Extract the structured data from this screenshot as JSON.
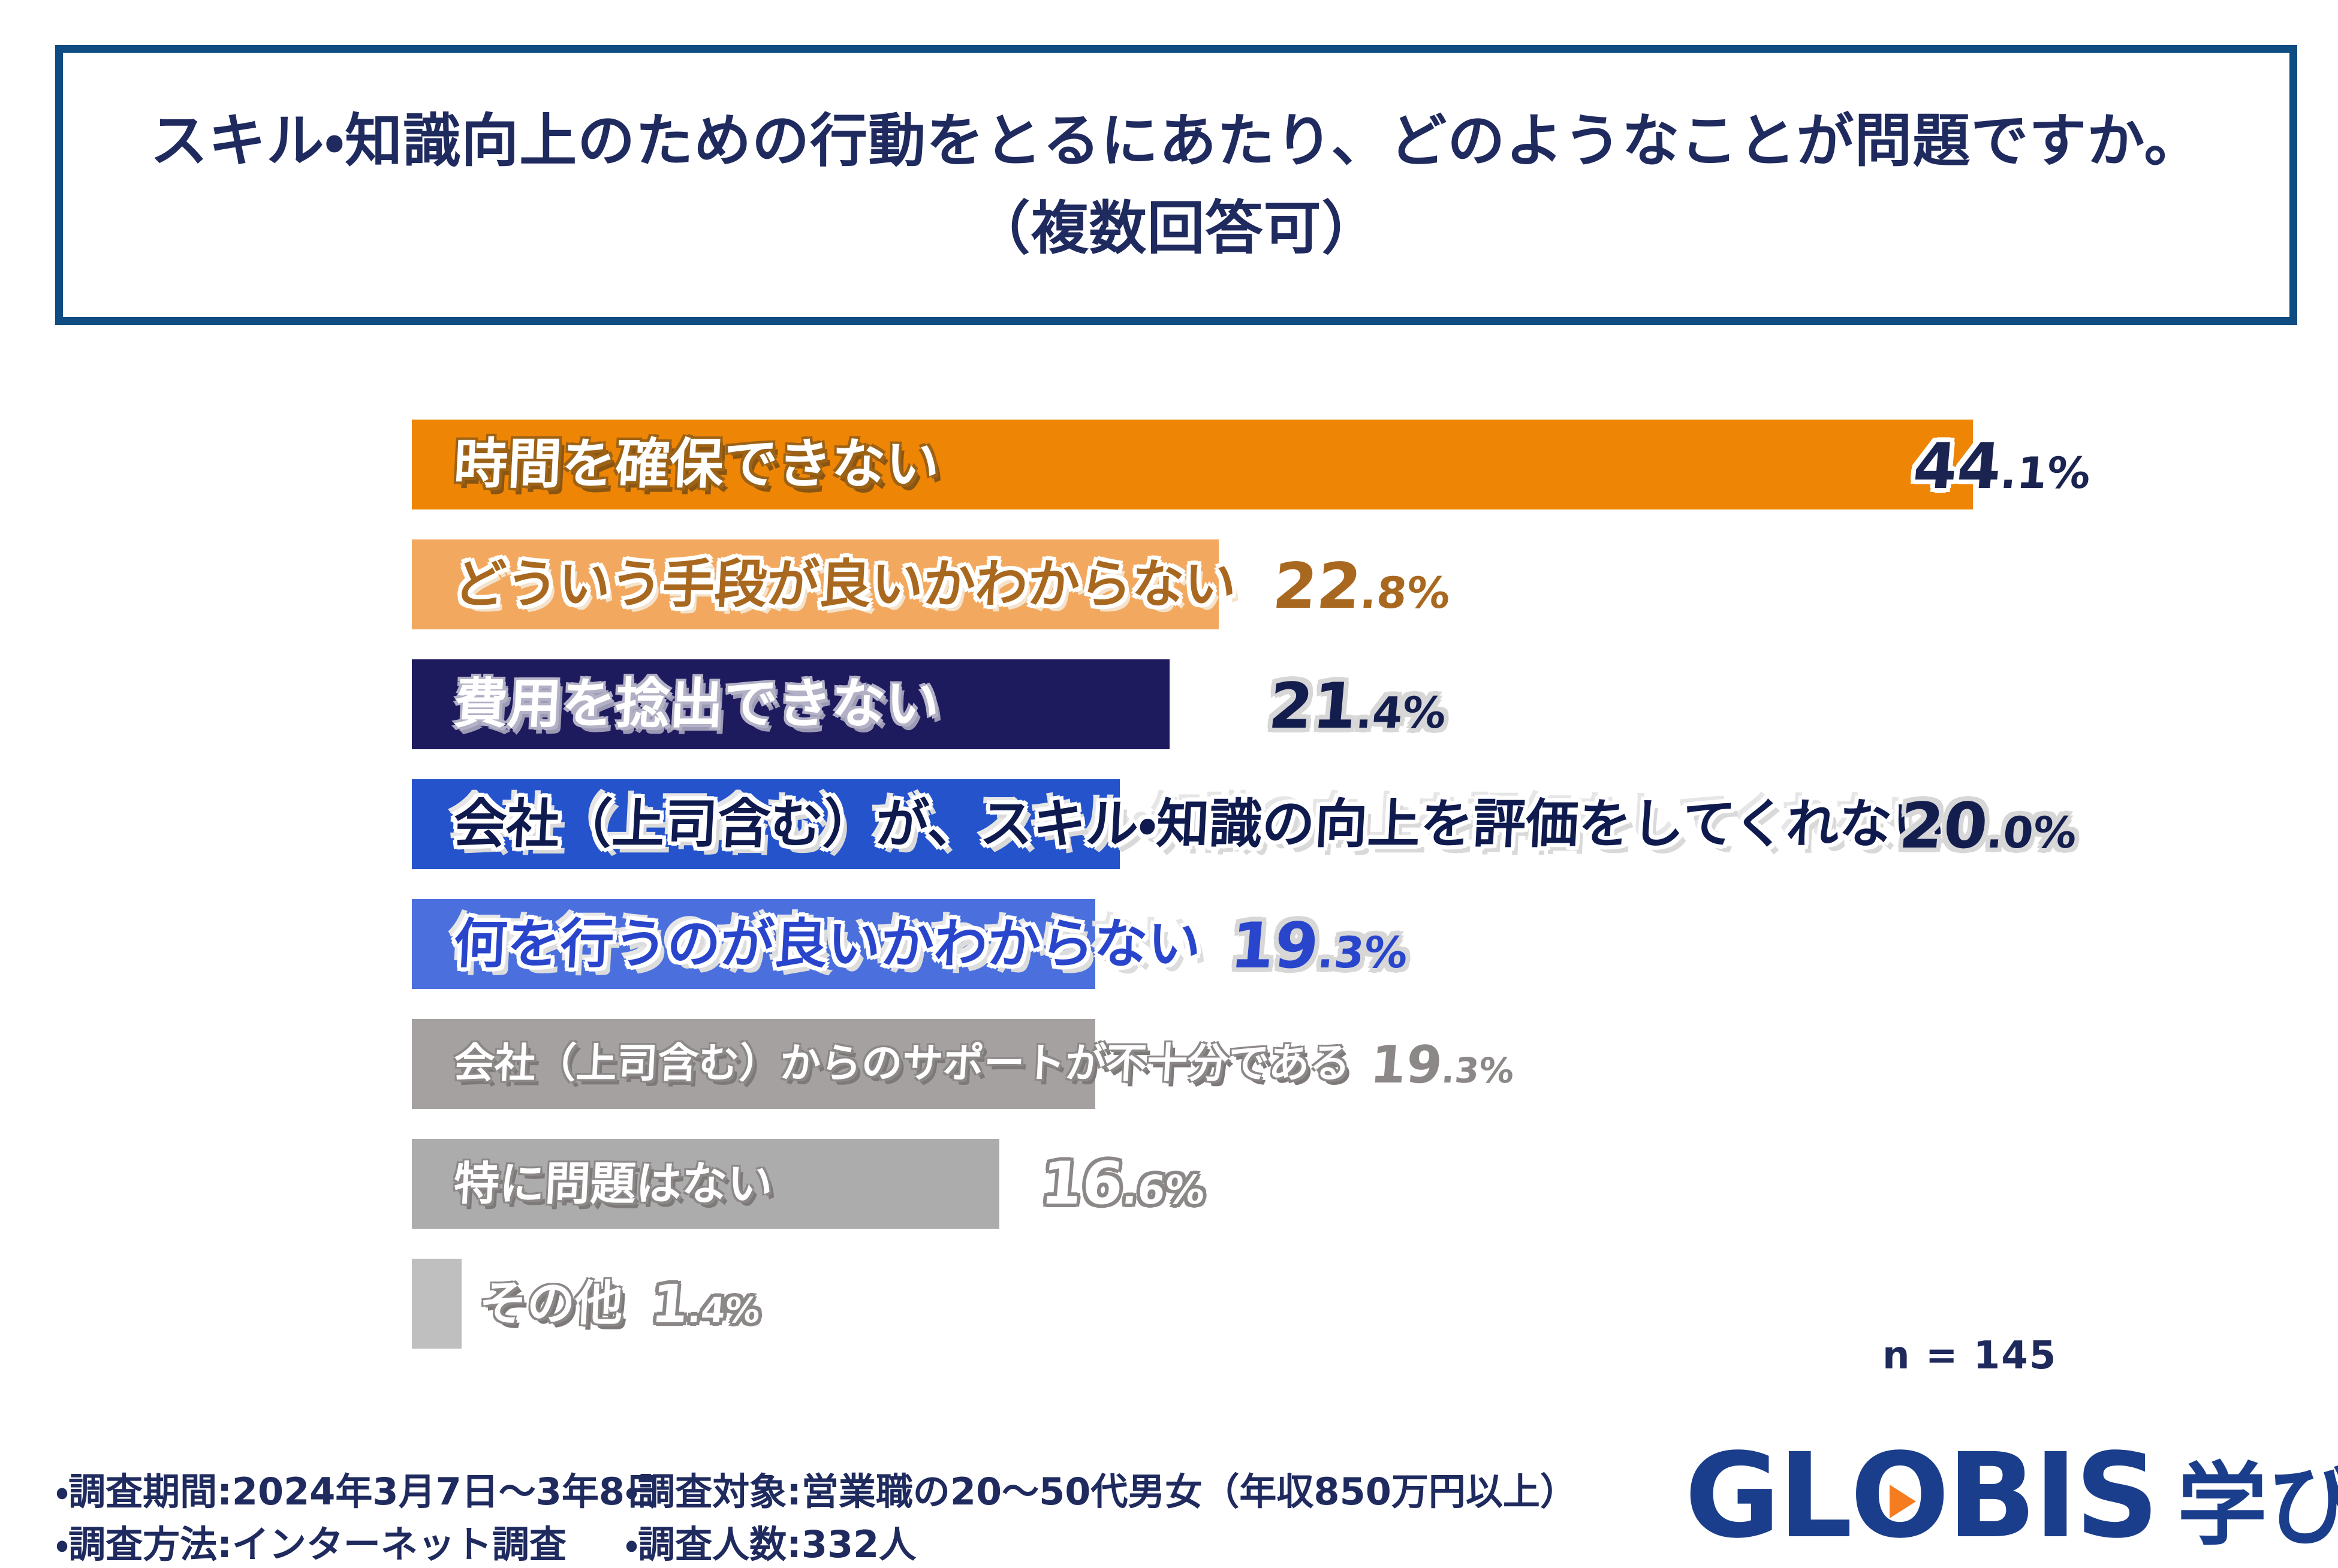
{
  "title": {
    "line1": "スキル・知識向上のための行動をとるにあたり、どのようなことが問題ですか。",
    "line2": "（複数回答可）"
  },
  "chart_data": {
    "type": "bar",
    "orientation": "horizontal",
    "unit": "%",
    "value_range": [
      0,
      44.1
    ],
    "grid": false,
    "legend": false,
    "n_label": "n = 145",
    "bars": [
      {
        "label": "時間を確保できない",
        "value": 44.1,
        "value_main": "44",
        "value_frac": ".1%",
        "color": "#ee8505"
      },
      {
        "label": "どういう手段が良いかわからない",
        "value": 22.8,
        "value_main": "22",
        "value_frac": ".8%",
        "color": "#f2a95f"
      },
      {
        "label": "費用を捻出できない",
        "value": 21.4,
        "value_main": "21",
        "value_frac": ".4%",
        "color": "#1e1a5e"
      },
      {
        "label": "会社（上司含む）が、スキル・知識の向上を評価をしてくれない",
        "value": 20.0,
        "value_main": "20",
        "value_frac": ".0%",
        "color": "#2453cc"
      },
      {
        "label": "何を行うのが良いかわからない",
        "value": 19.3,
        "value_main": "19",
        "value_frac": ".3%",
        "color": "#4b70de"
      },
      {
        "label": "会社（上司含む）からのサポートが不十分である",
        "value": 19.3,
        "value_main": "19",
        "value_frac": ".3%",
        "color": "#a5a1a1"
      },
      {
        "label": "特に問題はない",
        "value": 16.6,
        "value_main": "16",
        "value_frac": ".6%",
        "color": "#acacac"
      },
      {
        "label": "その他",
        "value": 1.4,
        "value_main": "1",
        "value_frac": ".4%",
        "color": "#bfbfbf"
      }
    ]
  },
  "footnotes": {
    "period": "・調査期間:2024年3月7日～3年8日",
    "target": "・調査対象:営業職の20～50代男女（年収850万円以上）",
    "method": "・調査方法:インターネット調査",
    "count": "・調査人数:332人"
  },
  "logo": {
    "gl": "GL",
    "o": "O",
    "bis": "BIS",
    "suffix": "学び放題",
    "brand_navy": "#1b3e8c",
    "accent_orange": "#f57c1f"
  },
  "colors": {
    "title_navy": "#1f2a5e",
    "box_border": "#0f4c81",
    "background": "#ffffff"
  }
}
